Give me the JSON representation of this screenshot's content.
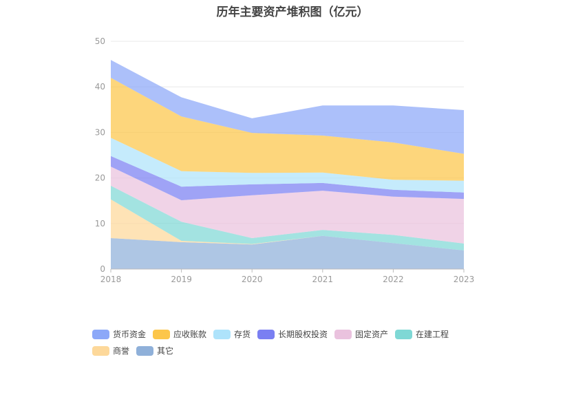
{
  "chart_data": {
    "type": "area",
    "stacked": true,
    "title": "历年主要资产堆积图（亿元）",
    "x": [
      "2018",
      "2019",
      "2020",
      "2021",
      "2022",
      "2023"
    ],
    "ylim": [
      0,
      50
    ],
    "yticks": [
      0,
      10,
      20,
      30,
      40,
      50
    ],
    "grid": true,
    "legend_position": "bottom",
    "series": [
      {
        "name": "其它",
        "color": "#8fb0d9",
        "values": [
          6.8,
          5.9,
          5.4,
          7.3,
          5.7,
          4.1
        ]
      },
      {
        "name": "商誉",
        "color": "#fdd89a",
        "values": [
          8.5,
          0.3,
          0.1,
          0.0,
          0.0,
          0.0
        ]
      },
      {
        "name": "在建工程",
        "color": "#7fd8d5",
        "values": [
          3.0,
          4.2,
          1.3,
          1.3,
          1.8,
          1.5
        ]
      },
      {
        "name": "固定资产",
        "color": "#eac2de",
        "values": [
          4.2,
          4.7,
          9.4,
          8.6,
          8.4,
          9.8
        ]
      },
      {
        "name": "长期股权投资",
        "color": "#7a7ff2",
        "values": [
          2.3,
          3.0,
          2.4,
          1.7,
          1.5,
          1.4
        ]
      },
      {
        "name": "存货",
        "color": "#aee3fb",
        "values": [
          4.0,
          3.4,
          2.5,
          2.3,
          2.2,
          2.6
        ]
      },
      {
        "name": "应收账款",
        "color": "#fcc64a",
        "values": [
          13.2,
          12.0,
          8.8,
          8.1,
          8.2,
          5.9
        ]
      },
      {
        "name": "货币资金",
        "color": "#8ca8f8",
        "values": [
          3.9,
          4.2,
          3.2,
          6.6,
          8.1,
          9.6
        ]
      }
    ],
    "legend_order": [
      "货币资金",
      "应收账款",
      "存货",
      "长期股权投资",
      "固定资产",
      "在建工程",
      "商誉",
      "其它"
    ]
  }
}
